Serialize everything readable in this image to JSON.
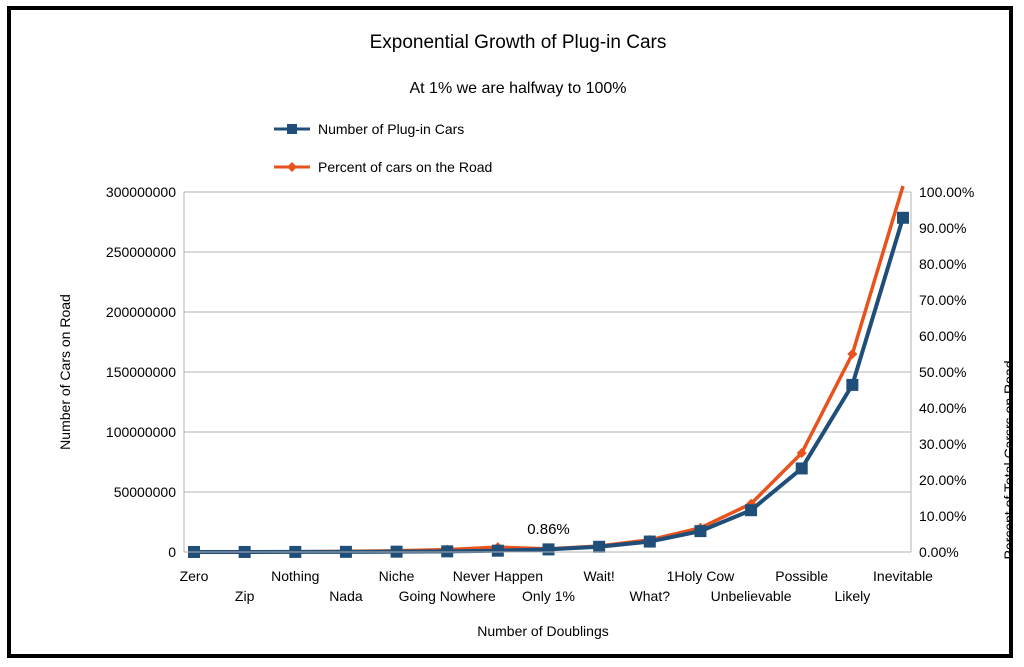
{
  "chart_data": {
    "type": "line",
    "title": "Exponential Growth of Plug-in Cars",
    "subtitle": "At 1% we are halfway to 100%",
    "xlabel": "Number of Doublings",
    "ylabel": "Number of Cars on Road",
    "y2label": "Percent of Total Carsrs on Road",
    "categories": [
      "Zero",
      "Zip",
      "Nothing",
      "Nada",
      "Niche",
      "Going Nowhere",
      "Never Happen",
      "Only 1%",
      "Wait!",
      "What?",
      "1Holy Cow",
      "Unbelievable",
      "Possible",
      "Likely",
      "Inevitable"
    ],
    "ylim": [
      0,
      300000000
    ],
    "y2lim": [
      0,
      1
    ],
    "y_ticks": [
      "0",
      "50000000",
      "100000000",
      "150000000",
      "200000000",
      "250000000",
      "300000000"
    ],
    "y2_ticks": [
      "0.00%",
      "10.00%",
      "20.00%",
      "30.00%",
      "40.00%",
      "50.00%",
      "60.00%",
      "70.00%",
      "80.00%",
      "90.00%",
      "100.00%"
    ],
    "series": [
      {
        "name": "Number of Plug-in Cars",
        "axis": "left",
        "color": "#1f4e79",
        "marker": "square",
        "values": [
          17000,
          34000,
          68000,
          136000,
          272000,
          544000,
          1088000,
          2176000,
          4352000,
          8704000,
          17408000,
          34816000,
          69632000,
          139264000,
          278528000
        ]
      },
      {
        "name": "Percent of cars on the Road",
        "axis": "right",
        "color": "#e8531d",
        "marker": "diamond",
        "values": [
          0.0002,
          0.0004,
          0.0008,
          0.0017,
          0.0034,
          0.0067,
          0.0134,
          0.0086,
          0.0168,
          0.0336,
          0.0672,
          0.134,
          0.275,
          0.55,
          1.02
        ]
      }
    ],
    "annotations": [
      {
        "category_index": 7,
        "text": "0.86%"
      }
    ],
    "grid": true,
    "legend_position": "top-center"
  }
}
